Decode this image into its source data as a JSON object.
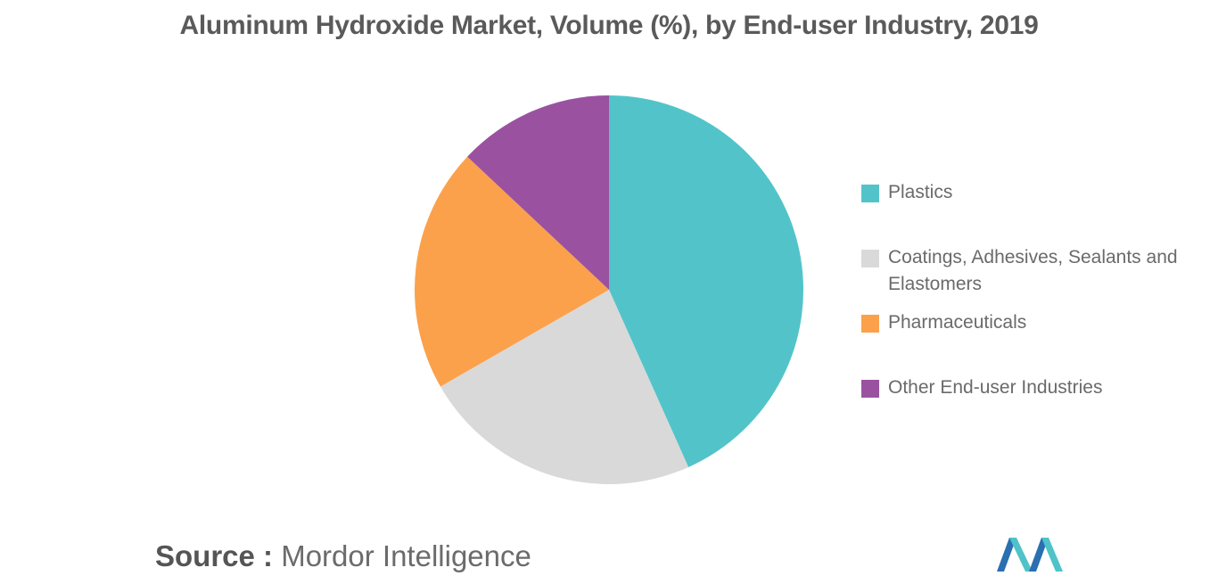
{
  "chart_data": {
    "type": "pie",
    "title": "Aluminum Hydroxide Market, Volume (%), by End-user Industry, 2019",
    "slices": [
      {
        "label": "Plastics",
        "value": 43.3,
        "color": "#52c4c9"
      },
      {
        "label": "Coatings, Adhesives, Sealants and Elastomers",
        "value": 23.4,
        "color": "#d9d9d9"
      },
      {
        "label": "Pharmaceuticals",
        "value": 20.3,
        "color": "#fba14b"
      },
      {
        "label": "Other End-user Industries",
        "value": 13.0,
        "color": "#9a52a0"
      }
    ],
    "legend_position": "right"
  },
  "legend": {
    "items": [
      {
        "label": "Plastics",
        "color": "#52c4c9"
      },
      {
        "label": "Coatings, Adhesives, Sealants and Elastomers",
        "color": "#d9d9d9"
      },
      {
        "label": "Pharmaceuticals",
        "color": "#fba14b"
      },
      {
        "label": "Other End-user Industries",
        "color": "#9a52a0"
      }
    ]
  },
  "footer": {
    "source_key": "Source :",
    "source_value": "Mordor Intelligence",
    "logo_icon": "mordor-intelligence-logo-icon"
  }
}
